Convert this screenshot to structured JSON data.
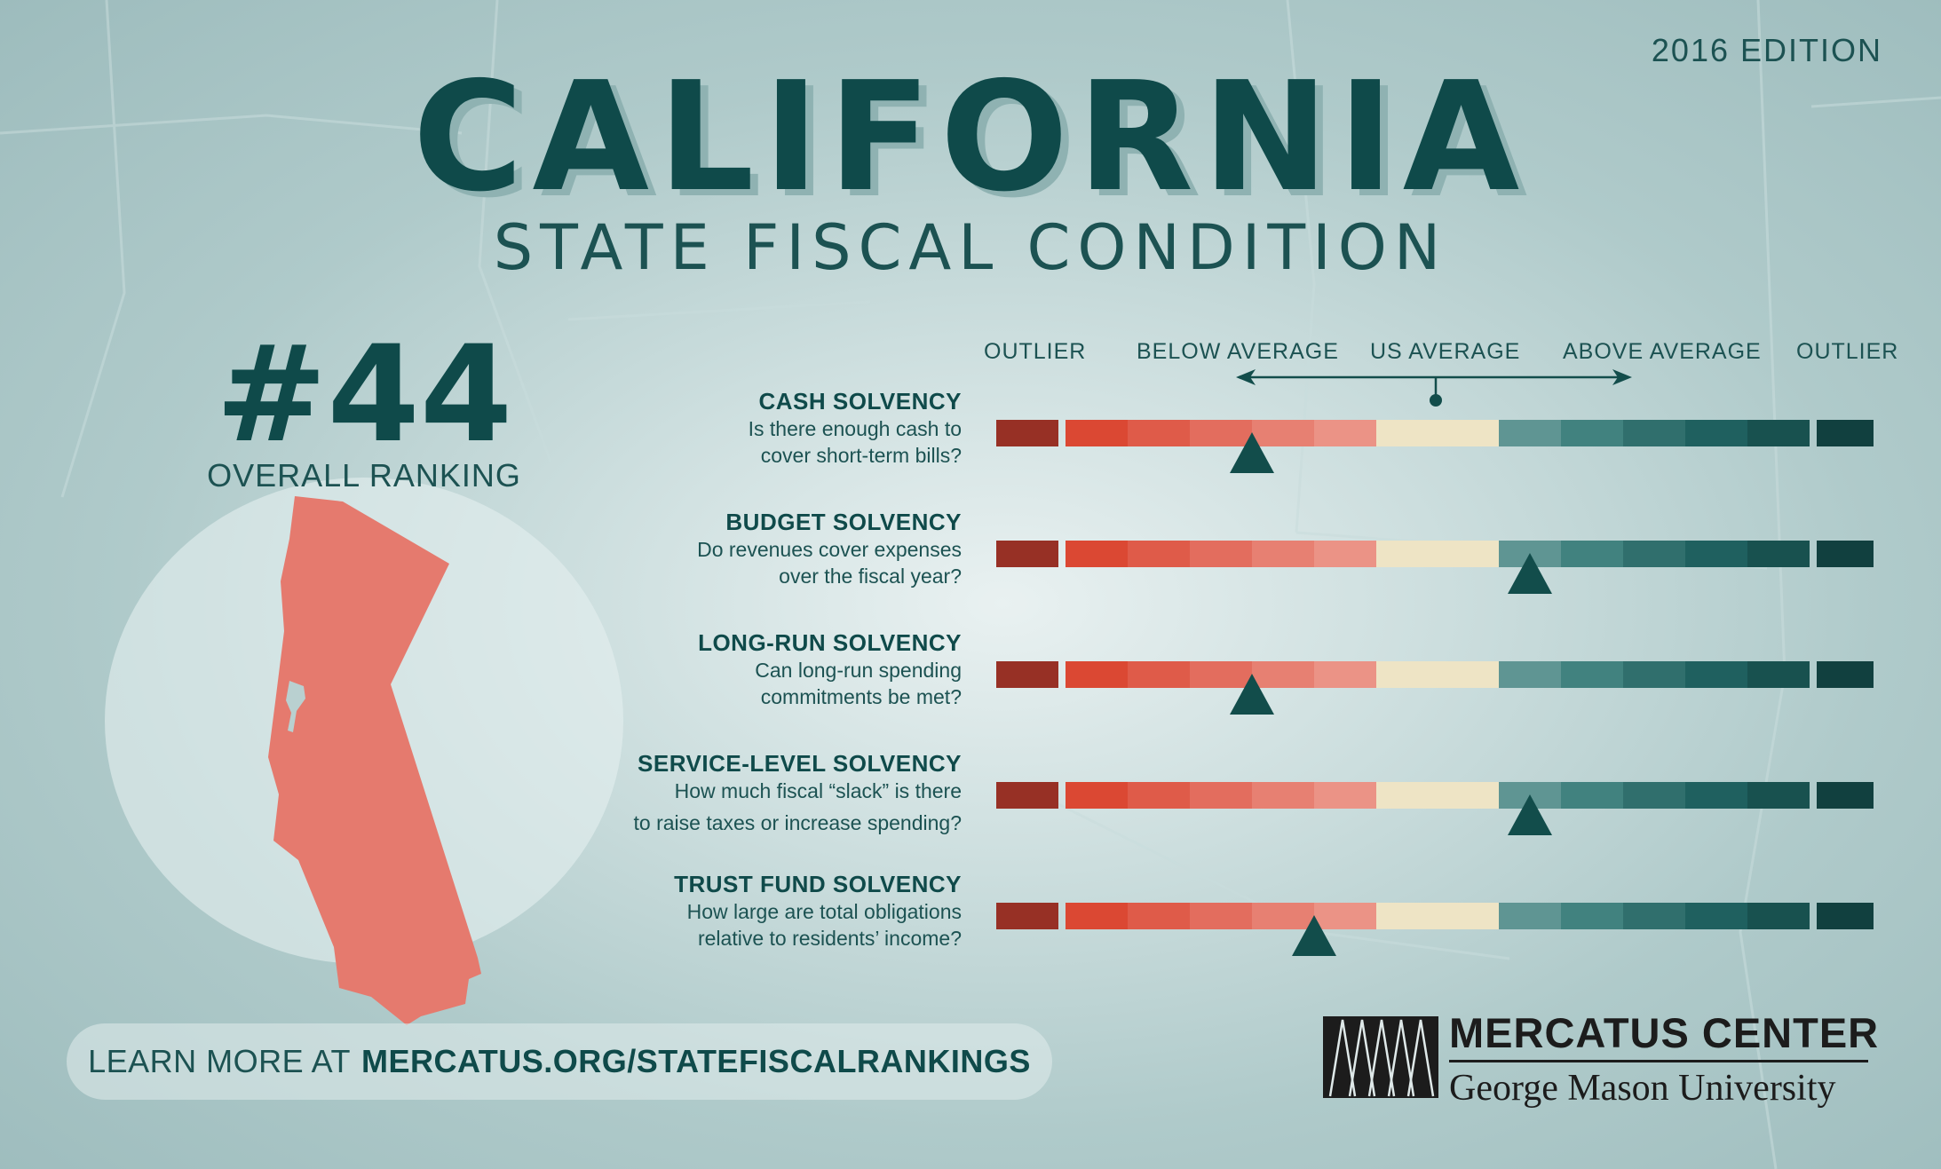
{
  "header": {
    "edition": "2016 EDITION",
    "title": "CALIFORNIA",
    "subtitle": "STATE FISCAL CONDITION"
  },
  "ranking": {
    "value": "#44",
    "label": "OVERALL RANKING"
  },
  "scale": {
    "headings": [
      "OUTLIER",
      "BELOW AVERAGE",
      "US AVERAGE",
      "ABOVE AVERAGE",
      "OUTLIER"
    ]
  },
  "chart_data": {
    "type": "rating-scale",
    "levels": 14,
    "level_colors": [
      "#973025",
      "#db4833",
      "#df5b49",
      "#e36d5e",
      "#e78072",
      "#eb9386",
      "#eee4c5",
      "#7ea3a1",
      "#5f9593",
      "#41827f",
      "#306f6d",
      "#1f605f",
      "#18514f",
      "#11403f"
    ],
    "marker_color": "#124d4b",
    "metrics": [
      {
        "name": "CASH SOLVENCY",
        "question": [
          "Is there enough cash to",
          "cover short-term bills?"
        ],
        "position": 3.5
      },
      {
        "name": "BUDGET SOLVENCY",
        "question": [
          "Do revenues cover expenses",
          "over the fiscal year?"
        ],
        "position": 7.0
      },
      {
        "name": "LONG-RUN SOLVENCY",
        "question": [
          "Can long-run spending",
          "commitments be met?"
        ],
        "position": 3.5
      },
      {
        "name": "SERVICE-LEVEL SOLVENCY",
        "question": [
          "How much fiscal “slack” is there",
          "to raise taxes or increase spending?"
        ],
        "position": 7.0
      },
      {
        "name": "TRUST FUND SOLVENCY",
        "question": [
          "How large are total obligations",
          "relative to residents’ income?"
        ],
        "position": 4.5
      }
    ]
  },
  "cta": {
    "prefix": "LEARN MORE AT",
    "link": "MERCATUS.ORG/STATEFISCALRANKINGS"
  },
  "logo": {
    "name": "MERCATUS CENTER",
    "sub": "George Mason University"
  },
  "colors": {
    "teal_dark": "#0f4a4a",
    "state_fill": "#e57a6e"
  }
}
